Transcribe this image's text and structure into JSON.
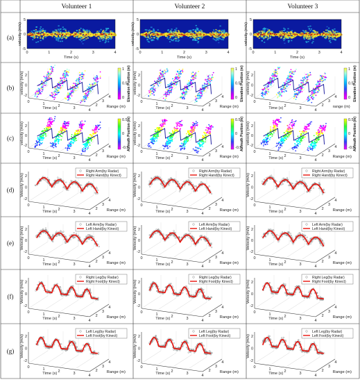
{
  "columns": [
    "Volunteer 1",
    "Volunteer 2",
    "Volunteer 3"
  ],
  "rows": [
    {
      "label": "(a)",
      "kind": "spectrogram"
    },
    {
      "label": "(b)",
      "kind": "elevation"
    },
    {
      "label": "(c)",
      "kind": "azimuth"
    },
    {
      "label": "(d)",
      "kind": "arm",
      "legend": [
        "Right Arm(by Radar)",
        "Right Hand(by Kinect)"
      ]
    },
    {
      "label": "(e)",
      "kind": "arm",
      "legend": [
        "Left Arm(by Radar)",
        "Left Hand(by Kinect)"
      ]
    },
    {
      "label": "(f)",
      "kind": "leg",
      "legend": [
        "Right Leg(by Radar)",
        "Right Foot(by Kinect)"
      ]
    },
    {
      "label": "(g)",
      "kind": "leg",
      "legend": [
        "Left Leg(by Radar)",
        "Left Foot(by Kinect)"
      ]
    }
  ],
  "axis_text": {
    "velocity": "velocity (m/s)",
    "Velocity": "Velocity (m/s)",
    "time": "Time (s)",
    "range": "Range (m)",
    "range_lower": "range (m)",
    "elevation_cbar": "Elevation Position (m)",
    "azimuth_cbar": "Azimuth Position (m)"
  },
  "chart_data": {
    "type": "scatter",
    "spectrogram": {
      "x_range": [
        0,
        4
      ],
      "y_range": [
        -5,
        5
      ],
      "x_ticks": [
        "0",
        "1",
        "2",
        "3",
        "4"
      ],
      "y_ticks": [
        "5",
        "0",
        "-5"
      ],
      "gait_cycles": 4,
      "colors": [
        "#0a1aa0",
        "#1f5fd8",
        "#25b8e0",
        "#f0e830",
        "#e8a020",
        "#c02010"
      ]
    },
    "panel3d": {
      "time_ticks": [
        "0",
        "1",
        "2",
        "3",
        "4"
      ],
      "range_ticks": [
        "2",
        "3",
        "4"
      ],
      "velocity_ticks": [
        "2",
        "0",
        "-2"
      ],
      "elevation_ticks": [
        "1",
        "0.5",
        "0"
      ],
      "azimuth_ticks": [
        "0.5",
        "0",
        "-0.5"
      ]
    },
    "peak_velocity": {
      "arm": 2.0,
      "leg": 2.6,
      "units": "m/s"
    },
    "series": [
      {
        "name": "Radar",
        "marker": "gray-circle",
        "color": "#888888"
      },
      {
        "name": "Kinect",
        "marker": "red-line",
        "color": "#e8120c"
      }
    ]
  }
}
